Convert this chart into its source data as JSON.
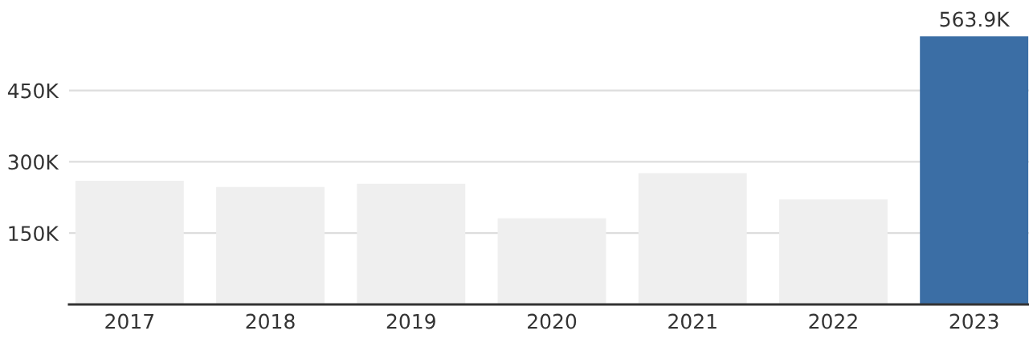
{
  "chart_data": {
    "type": "bar",
    "categories": [
      "2017",
      "2018",
      "2019",
      "2020",
      "2021",
      "2022",
      "2023"
    ],
    "values": [
      260000,
      247000,
      254000,
      181000,
      276000,
      221000,
      563900
    ],
    "colors": [
      "#efefef",
      "#efefef",
      "#efefef",
      "#efefef",
      "#efefef",
      "#efefef",
      "#3b6ea5"
    ],
    "value_labels": [
      null,
      null,
      null,
      null,
      null,
      null,
      "563.9K"
    ],
    "ylim": [
      0,
      563900
    ],
    "yticks": [
      {
        "value": 150000,
        "label": "150K"
      },
      {
        "value": 300000,
        "label": "300K"
      },
      {
        "value": 450000,
        "label": "450K"
      }
    ],
    "grid": "y"
  }
}
